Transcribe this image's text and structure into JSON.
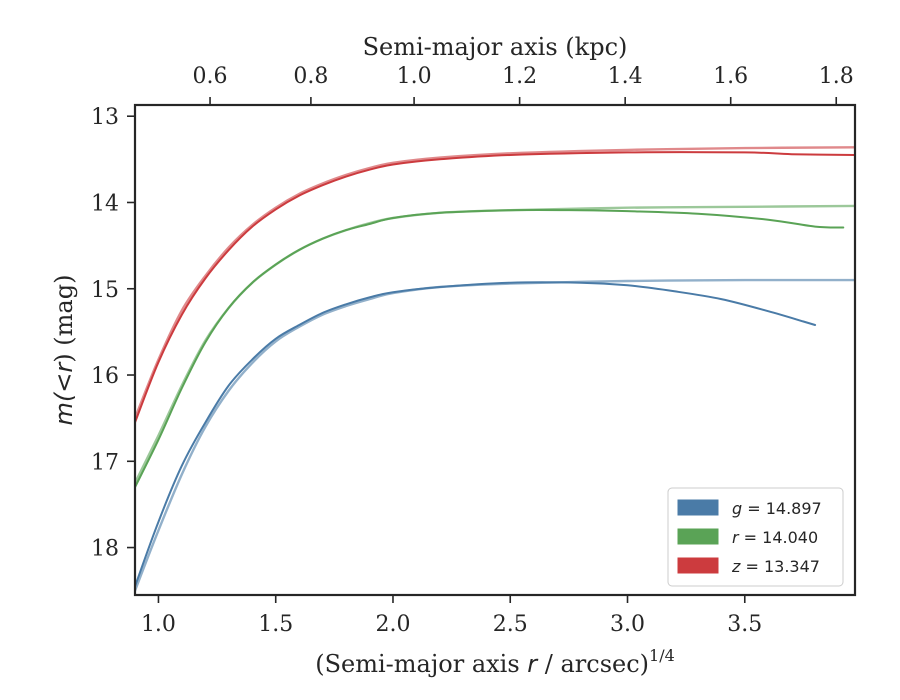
{
  "chart_data": {
    "type": "line",
    "title": "",
    "xlabel_prefix": "(Semi-major axis ",
    "xlabel_var": "r",
    "xlabel_suffix": " / arcsec)",
    "xlabel_exponent": "1/4",
    "top_xlabel": "Semi-major axis (kpc)",
    "ylabel_pre": "m(",
    "ylabel_mid": "<",
    "ylabel_var": "r",
    "ylabel_post": ") (mag)",
    "xlim": [
      0.9,
      3.97
    ],
    "ylim": [
      18.55,
      12.87
    ],
    "y_inverted": true,
    "x_ticks": [
      1.0,
      1.5,
      2.0,
      2.5,
      3.0,
      3.5
    ],
    "x_tick_labels": [
      "1.0",
      "1.5",
      "2.0",
      "2.5",
      "3.0",
      "3.5"
    ],
    "y_ticks": [
      13,
      14,
      15,
      16,
      17,
      18
    ],
    "y_tick_labels": [
      "13",
      "14",
      "15",
      "16",
      "17",
      "18"
    ],
    "top_ticks_kpc": [
      0.6,
      0.8,
      1.0,
      1.2,
      1.4,
      1.6,
      1.8
    ],
    "top_tick_labels": [
      "0.6",
      "0.8",
      "1.0",
      "1.2",
      "1.4",
      "1.6",
      "1.8"
    ],
    "top_tick_positions_x": [
      1.22,
      1.65,
      2.09,
      2.54,
      2.99,
      3.44,
      3.89
    ],
    "legend_position": "lower-right",
    "legend": [
      {
        "band": "g",
        "text": "= 14.897",
        "color": "#4a7ba7"
      },
      {
        "band": "r",
        "text": "= 14.040",
        "color": "#5aa356"
      },
      {
        "band": "z",
        "text": "= 13.347",
        "color": "#cc3b3e"
      }
    ],
    "series": [
      {
        "band": "g",
        "color": "#4a7ba7",
        "data": [
          [
            0.9,
            18.45
          ],
          [
            1.0,
            17.7
          ],
          [
            1.1,
            17.05
          ],
          [
            1.2,
            16.55
          ],
          [
            1.3,
            16.12
          ],
          [
            1.4,
            15.82
          ],
          [
            1.5,
            15.58
          ],
          [
            1.6,
            15.42
          ],
          [
            1.7,
            15.28
          ],
          [
            1.8,
            15.18
          ],
          [
            1.9,
            15.1
          ],
          [
            2.0,
            15.04
          ],
          [
            2.2,
            14.98
          ],
          [
            2.5,
            14.93
          ],
          [
            2.8,
            14.93
          ],
          [
            3.0,
            14.96
          ],
          [
            3.2,
            15.03
          ],
          [
            3.4,
            15.12
          ],
          [
            3.6,
            15.26
          ],
          [
            3.75,
            15.38
          ],
          [
            3.8,
            15.42
          ]
        ],
        "model": [
          [
            0.9,
            18.5
          ],
          [
            1.0,
            17.8
          ],
          [
            1.1,
            17.15
          ],
          [
            1.2,
            16.6
          ],
          [
            1.3,
            16.18
          ],
          [
            1.4,
            15.86
          ],
          [
            1.5,
            15.61
          ],
          [
            1.6,
            15.44
          ],
          [
            1.7,
            15.3
          ],
          [
            1.8,
            15.2
          ],
          [
            1.9,
            15.12
          ],
          [
            2.0,
            15.05
          ],
          [
            2.2,
            14.98
          ],
          [
            2.5,
            14.94
          ],
          [
            3.0,
            14.91
          ],
          [
            3.5,
            14.9
          ],
          [
            3.97,
            14.9
          ]
        ]
      },
      {
        "band": "r",
        "color": "#5aa356",
        "data": [
          [
            0.9,
            17.3
          ],
          [
            1.0,
            16.75
          ],
          [
            1.1,
            16.15
          ],
          [
            1.2,
            15.62
          ],
          [
            1.3,
            15.22
          ],
          [
            1.4,
            14.93
          ],
          [
            1.5,
            14.72
          ],
          [
            1.6,
            14.55
          ],
          [
            1.7,
            14.42
          ],
          [
            1.8,
            14.32
          ],
          [
            1.9,
            14.25
          ],
          [
            2.0,
            14.18
          ],
          [
            2.2,
            14.12
          ],
          [
            2.5,
            14.09
          ],
          [
            2.8,
            14.09
          ],
          [
            3.0,
            14.1
          ],
          [
            3.3,
            14.13
          ],
          [
            3.6,
            14.2
          ],
          [
            3.8,
            14.28
          ],
          [
            3.92,
            14.29
          ]
        ],
        "model": [
          [
            0.9,
            17.25
          ],
          [
            1.0,
            16.7
          ],
          [
            1.1,
            16.12
          ],
          [
            1.2,
            15.6
          ],
          [
            1.3,
            15.22
          ],
          [
            1.4,
            14.93
          ],
          [
            1.5,
            14.72
          ],
          [
            1.6,
            14.55
          ],
          [
            1.7,
            14.42
          ],
          [
            1.8,
            14.32
          ],
          [
            1.9,
            14.24
          ],
          [
            2.0,
            14.18
          ],
          [
            2.2,
            14.12
          ],
          [
            2.5,
            14.09
          ],
          [
            3.0,
            14.06
          ],
          [
            3.5,
            14.05
          ],
          [
            3.97,
            14.04
          ]
        ]
      },
      {
        "band": "z",
        "color": "#cc3b3e",
        "data": [
          [
            0.9,
            16.55
          ],
          [
            1.0,
            15.85
          ],
          [
            1.1,
            15.3
          ],
          [
            1.2,
            14.88
          ],
          [
            1.3,
            14.55
          ],
          [
            1.4,
            14.28
          ],
          [
            1.5,
            14.08
          ],
          [
            1.6,
            13.92
          ],
          [
            1.7,
            13.8
          ],
          [
            1.8,
            13.7
          ],
          [
            1.9,
            13.62
          ],
          [
            2.0,
            13.56
          ],
          [
            2.2,
            13.5
          ],
          [
            2.5,
            13.45
          ],
          [
            3.0,
            13.42
          ],
          [
            3.5,
            13.42
          ],
          [
            3.7,
            13.44
          ],
          [
            3.97,
            13.45
          ]
        ],
        "model": [
          [
            0.9,
            16.5
          ],
          [
            1.0,
            15.82
          ],
          [
            1.1,
            15.25
          ],
          [
            1.2,
            14.85
          ],
          [
            1.3,
            14.52
          ],
          [
            1.4,
            14.26
          ],
          [
            1.5,
            14.06
          ],
          [
            1.6,
            13.9
          ],
          [
            1.7,
            13.78
          ],
          [
            1.8,
            13.68
          ],
          [
            1.9,
            13.6
          ],
          [
            2.0,
            13.54
          ],
          [
            2.2,
            13.48
          ],
          [
            2.5,
            13.43
          ],
          [
            3.0,
            13.39
          ],
          [
            3.5,
            13.37
          ],
          [
            3.97,
            13.36
          ]
        ]
      }
    ]
  }
}
